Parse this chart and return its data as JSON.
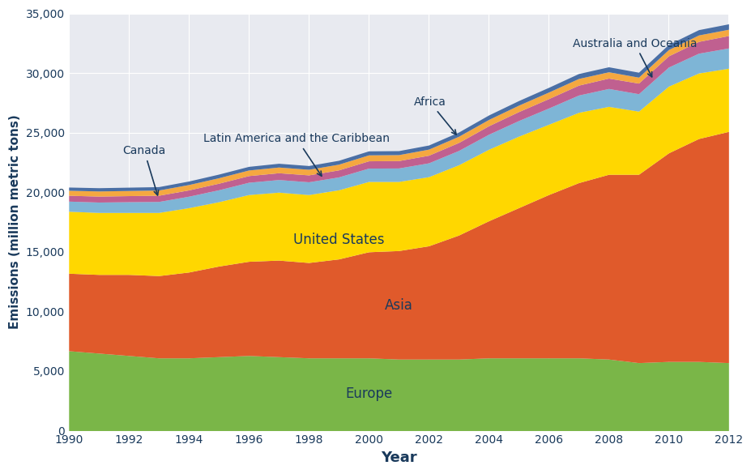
{
  "years": [
    1990,
    1991,
    1992,
    1993,
    1994,
    1995,
    1996,
    1997,
    1998,
    1999,
    2000,
    2001,
    2002,
    2003,
    2004,
    2005,
    2006,
    2007,
    2008,
    2009,
    2010,
    2011,
    2012
  ],
  "regions": {
    "Europe": [
      6700,
      6500,
      6300,
      6100,
      6100,
      6200,
      6300,
      6200,
      6100,
      6100,
      6100,
      6000,
      6000,
      6000,
      6100,
      6100,
      6100,
      6100,
      6000,
      5700,
      5800,
      5800,
      5700
    ],
    "Asia": [
      6500,
      6600,
      6800,
      6900,
      7200,
      7600,
      7900,
      8100,
      8000,
      8300,
      8900,
      9100,
      9500,
      10400,
      11500,
      12600,
      13700,
      14700,
      15500,
      15800,
      17500,
      18700,
      19400
    ],
    "United States": [
      5200,
      5200,
      5200,
      5300,
      5400,
      5400,
      5600,
      5700,
      5700,
      5800,
      5900,
      5800,
      5800,
      5900,
      6000,
      6000,
      5900,
      5900,
      5700,
      5300,
      5600,
      5500,
      5300
    ],
    "Latin America and the Caribbean": [
      850,
      870,
      900,
      920,
      960,
      1000,
      1030,
      1060,
      1070,
      1080,
      1120,
      1130,
      1160,
      1200,
      1260,
      1310,
      1360,
      1450,
      1500,
      1460,
      1600,
      1660,
      1700
    ],
    "Africa": [
      490,
      500,
      510,
      520,
      530,
      550,
      560,
      570,
      580,
      590,
      610,
      620,
      640,
      670,
      710,
      750,
      790,
      830,
      870,
      890,
      940,
      990,
      1040
    ],
    "Canada": [
      420,
      430,
      430,
      440,
      450,
      460,
      470,
      480,
      470,
      480,
      500,
      500,
      510,
      520,
      530,
      540,
      550,
      560,
      530,
      500,
      530,
      540,
      530
    ],
    "Australia and Oceania": [
      270,
      275,
      280,
      285,
      295,
      305,
      305,
      315,
      315,
      325,
      335,
      335,
      345,
      355,
      375,
      385,
      395,
      415,
      420,
      415,
      435,
      445,
      455
    ]
  },
  "colors": {
    "Europe": "#7ab648",
    "Asia": "#e05a2b",
    "United States": "#ffd700",
    "Latin America and the Caribbean": "#7eb5d6",
    "Africa": "#c06090",
    "Canada": "#f5a840",
    "Australia and Oceania": "#4a6fa5"
  },
  "background_color": "#e8eaf0",
  "xlabel": "Year",
  "ylabel": "Emissions (million metric tons)",
  "ylim": [
    0,
    35000
  ],
  "yticks": [
    0,
    5000,
    10000,
    15000,
    20000,
    25000,
    30000,
    35000
  ],
  "xticks": [
    1990,
    1992,
    1994,
    1996,
    1998,
    2000,
    2002,
    2004,
    2006,
    2008,
    2010,
    2012
  ],
  "label_color": "#1a3a5c",
  "annotation_color": "#1a3a5c"
}
